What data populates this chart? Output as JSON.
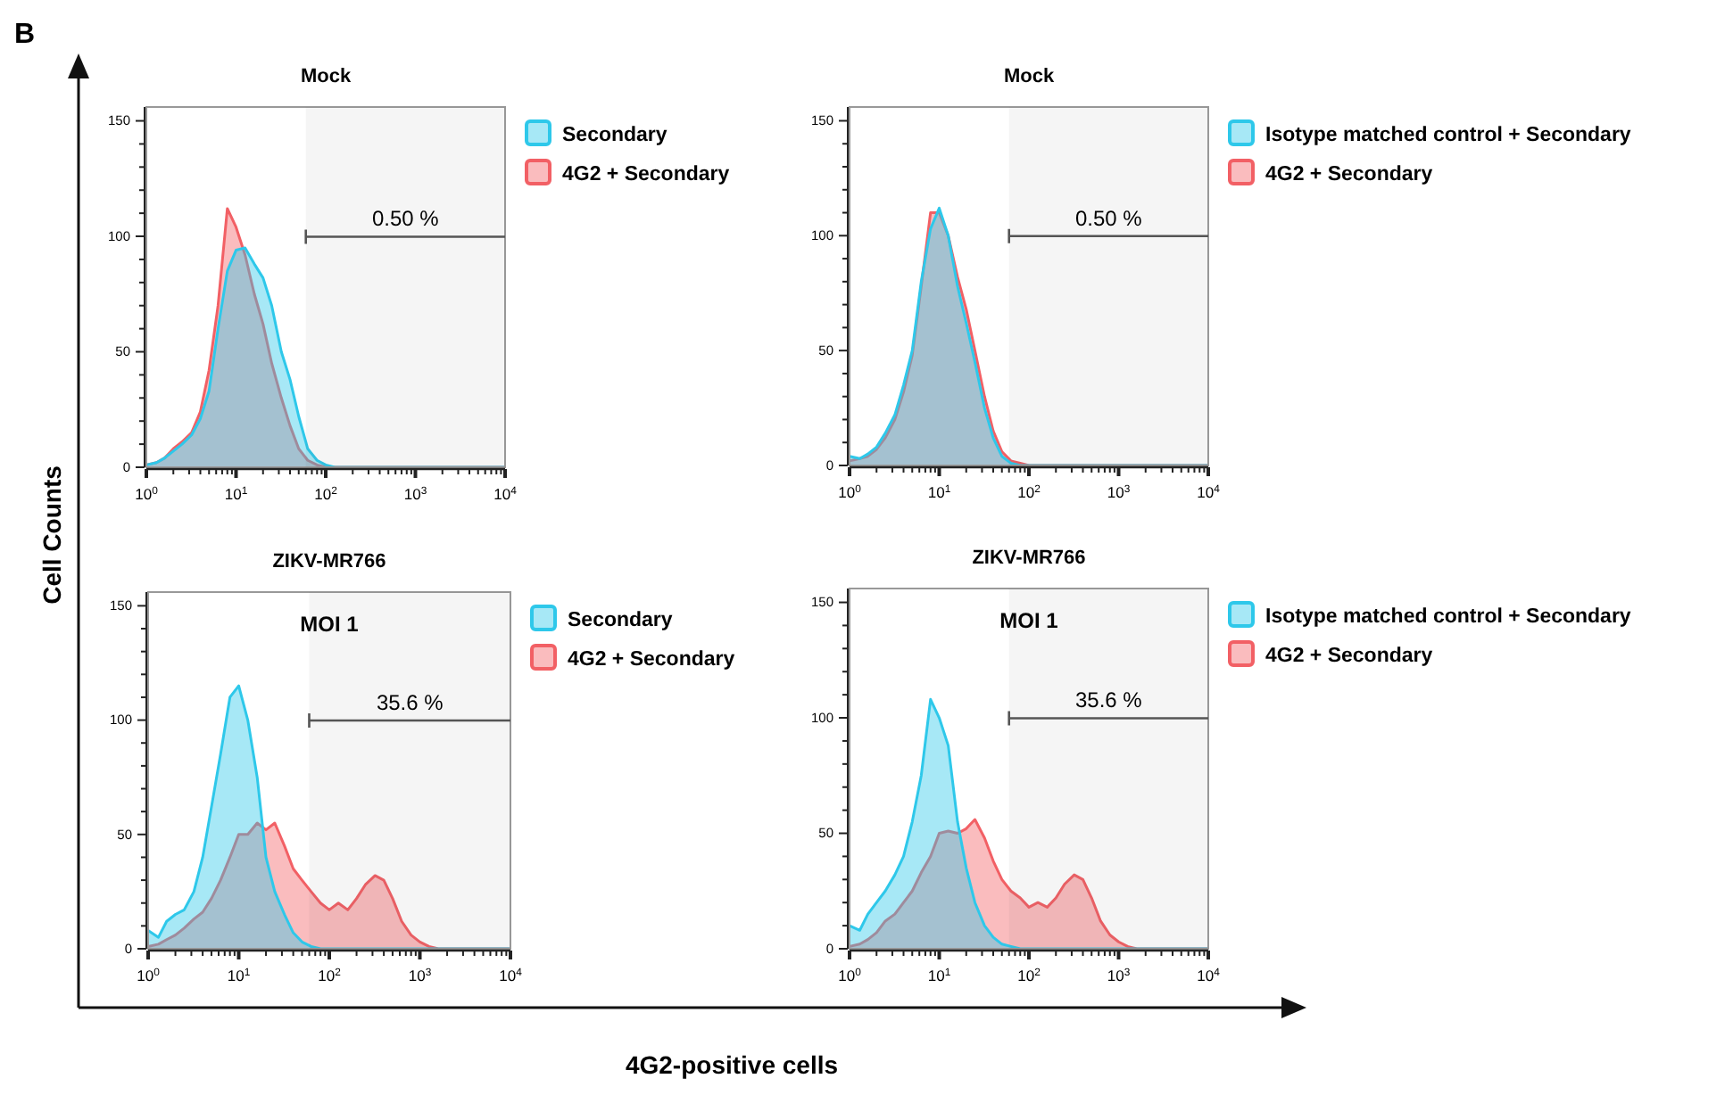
{
  "chart_data": [
    {
      "type": "area",
      "title": "Mock",
      "ylabel": "Cell Counts",
      "log": "x",
      "xlim": [
        1,
        10000
      ],
      "ylim": [
        0,
        156
      ],
      "legend": "right",
      "xticks": [
        {
          "value": 1,
          "label": "10$^{0}$"
        },
        {
          "value": 2,
          "label": null
        },
        {
          "value": 3,
          "label": null
        },
        {
          "value": 4,
          "label": null
        },
        {
          "value": 5,
          "label": null
        },
        {
          "value": 6,
          "label": null
        },
        {
          "value": 7,
          "label": null
        },
        {
          "value": 8,
          "label": null
        },
        {
          "value": 9,
          "label": null
        },
        {
          "value": 10,
          "label": "10$^{1}$"
        },
        {
          "value": 20,
          "label": null
        },
        {
          "value": 30,
          "label": null
        },
        {
          "value": 40,
          "label": null
        },
        {
          "value": 50,
          "label": null
        },
        {
          "value": 60,
          "label": null
        },
        {
          "value": 70,
          "label": null
        },
        {
          "value": 80,
          "label": null
        },
        {
          "value": 90,
          "label": null
        },
        {
          "value": 100,
          "label": "10$^{2}$"
        },
        {
          "value": 200,
          "label": null
        },
        {
          "value": 300,
          "label": null
        },
        {
          "value": 400,
          "label": null
        },
        {
          "value": 500,
          "label": null
        },
        {
          "value": 600,
          "label": null
        },
        {
          "value": 700,
          "label": null
        },
        {
          "value": 800,
          "label": null
        },
        {
          "value": 900,
          "label": null
        },
        {
          "value": 1000,
          "label": "10$^{3}$"
        },
        {
          "value": 2000,
          "label": null
        },
        {
          "value": 3000,
          "label": null
        },
        {
          "value": 4000,
          "label": null
        },
        {
          "value": 5000,
          "label": null
        },
        {
          "value": 6000,
          "label": null
        },
        {
          "value": 7000,
          "label": null
        },
        {
          "value": 8000,
          "label": null
        },
        {
          "value": 9000,
          "label": null
        },
        {
          "value": 10000,
          "label": "10$^{4}$"
        }
      ],
      "yticks": [
        0,
        {
          "value": 10,
          "label": null
        },
        {
          "value": 20,
          "label": null
        },
        {
          "value": 30,
          "label": null
        },
        {
          "value": 40,
          "label": null
        },
        50,
        {
          "value": 60,
          "label": null
        },
        {
          "value": 70,
          "label": null
        },
        {
          "value": 80,
          "label": null
        },
        {
          "value": 90,
          "label": null
        },
        100,
        {
          "value": 110,
          "label": null
        },
        {
          "value": 120,
          "label": null
        },
        {
          "value": 130,
          "label": null
        },
        {
          "value": 140,
          "label": null
        },
        150
      ],
      "annotations": [
        "B"
      ],
      "bands": [
        {
          "axis": "x",
          "from": 60,
          "to": 10000,
          "label": "0.50 %",
          "color": "#555555"
        }
      ],
      "x": [
        1,
        1.3,
        1.6,
        2,
        2.5,
        3.2,
        4,
        5,
        6.3,
        8,
        10,
        12.6,
        16,
        20,
        25,
        32,
        40,
        50,
        63,
        80,
        100,
        126,
        160,
        200,
        250,
        320,
        400,
        500,
        630,
        800,
        1000,
        1260,
        1600,
        2000,
        3200,
        5000,
        10000
      ],
      "series": [
        {
          "name": "Secondary",
          "color": "#2ec8ea",
          "values": [
            1,
            2,
            4,
            7,
            10,
            14,
            21,
            33,
            60,
            85,
            94,
            95,
            88,
            82,
            70,
            50,
            38,
            22,
            8,
            3,
            1,
            0,
            0,
            0,
            0,
            0,
            0,
            0,
            0,
            0,
            0,
            0,
            0,
            0,
            0,
            0,
            0
          ]
        },
        {
          "name": "4G2 + Secondary",
          "color": "#f26065",
          "values": [
            1,
            2,
            4,
            8,
            11,
            15,
            24,
            42,
            70,
            112,
            104,
            92,
            75,
            62,
            45,
            30,
            18,
            8,
            3,
            1,
            0,
            0,
            0,
            0,
            0,
            0,
            0,
            0,
            0,
            0,
            0,
            0,
            0,
            0,
            0,
            0,
            0
          ]
        }
      ]
    },
    {
      "type": "area",
      "title": "Mock",
      "log": "x",
      "xlim": [
        1,
        10000
      ],
      "ylim": [
        0,
        156
      ],
      "legend": "right",
      "xticks": [
        {
          "value": 1,
          "label": "10$^{0}$"
        },
        {
          "value": 2,
          "label": null
        },
        {
          "value": 3,
          "label": null
        },
        {
          "value": 4,
          "label": null
        },
        {
          "value": 5,
          "label": null
        },
        {
          "value": 6,
          "label": null
        },
        {
          "value": 7,
          "label": null
        },
        {
          "value": 8,
          "label": null
        },
        {
          "value": 9,
          "label": null
        },
        {
          "value": 10,
          "label": "10$^{1}$"
        },
        {
          "value": 20,
          "label": null
        },
        {
          "value": 30,
          "label": null
        },
        {
          "value": 40,
          "label": null
        },
        {
          "value": 50,
          "label": null
        },
        {
          "value": 60,
          "label": null
        },
        {
          "value": 70,
          "label": null
        },
        {
          "value": 80,
          "label": null
        },
        {
          "value": 90,
          "label": null
        },
        {
          "value": 100,
          "label": "10$^{2}$"
        },
        {
          "value": 200,
          "label": null
        },
        {
          "value": 300,
          "label": null
        },
        {
          "value": 400,
          "label": null
        },
        {
          "value": 500,
          "label": null
        },
        {
          "value": 600,
          "label": null
        },
        {
          "value": 700,
          "label": null
        },
        {
          "value": 800,
          "label": null
        },
        {
          "value": 900,
          "label": null
        },
        {
          "value": 1000,
          "label": "10$^{3}$"
        },
        {
          "value": 2000,
          "label": null
        },
        {
          "value": 3000,
          "label": null
        },
        {
          "value": 4000,
          "label": null
        },
        {
          "value": 5000,
          "label": null
        },
        {
          "value": 6000,
          "label": null
        },
        {
          "value": 7000,
          "label": null
        },
        {
          "value": 8000,
          "label": null
        },
        {
          "value": 9000,
          "label": null
        },
        {
          "value": 10000,
          "label": "10$^{4}$"
        }
      ],
      "yticks": [
        0,
        {
          "value": 10,
          "label": null
        },
        {
          "value": 20,
          "label": null
        },
        {
          "value": 30,
          "label": null
        },
        {
          "value": 40,
          "label": null
        },
        50,
        {
          "value": 60,
          "label": null
        },
        {
          "value": 70,
          "label": null
        },
        {
          "value": 80,
          "label": null
        },
        {
          "value": 90,
          "label": null
        },
        100,
        {
          "value": 110,
          "label": null
        },
        {
          "value": 120,
          "label": null
        },
        {
          "value": 130,
          "label": null
        },
        {
          "value": 140,
          "label": null
        },
        150
      ],
      "bands": [
        {
          "axis": "x",
          "from": 60,
          "to": 10000,
          "label": "0.50 %",
          "color": "#555555"
        }
      ],
      "x": [
        1,
        1.3,
        1.6,
        2,
        2.5,
        3.2,
        4,
        5,
        6.3,
        8,
        10,
        12.6,
        16,
        20,
        25,
        32,
        40,
        50,
        63,
        80,
        100,
        126,
        160,
        200,
        250,
        320,
        400,
        500,
        630,
        800,
        1000,
        1260,
        1600,
        2000,
        3200,
        5000,
        10000
      ],
      "series": [
        {
          "name": "Isotype matched control + Secondary",
          "color": "#2ec8ea",
          "values": [
            4,
            3,
            5,
            8,
            14,
            22,
            35,
            50,
            80,
            103,
            112,
            100,
            78,
            62,
            45,
            25,
            12,
            4,
            1,
            0,
            0,
            0,
            0,
            0,
            0,
            0,
            0,
            0,
            0,
            0,
            0,
            0,
            0,
            0,
            0,
            0,
            0
          ]
        },
        {
          "name": "4G2 + Secondary",
          "color": "#f26065",
          "values": [
            2,
            3,
            4,
            7,
            12,
            20,
            32,
            48,
            78,
            110,
            110,
            100,
            82,
            68,
            50,
            30,
            15,
            6,
            2,
            1,
            0,
            0,
            0,
            0,
            0,
            0,
            0,
            0,
            0,
            0,
            0,
            0,
            0,
            0,
            0,
            0,
            0
          ]
        }
      ]
    },
    {
      "type": "area",
      "title": "ZIKV-MR766",
      "subtitle": "MOI 1",
      "xlabel": "4G2-positive cells",
      "log": "x",
      "xlim": [
        1,
        10000
      ],
      "ylim": [
        0,
        156
      ],
      "legend": "right",
      "xticks": [
        {
          "value": 1,
          "label": "10$^{0}$"
        },
        {
          "value": 2,
          "label": null
        },
        {
          "value": 3,
          "label": null
        },
        {
          "value": 4,
          "label": null
        },
        {
          "value": 5,
          "label": null
        },
        {
          "value": 6,
          "label": null
        },
        {
          "value": 7,
          "label": null
        },
        {
          "value": 8,
          "label": null
        },
        {
          "value": 9,
          "label": null
        },
        {
          "value": 10,
          "label": "10$^{1}$"
        },
        {
          "value": 20,
          "label": null
        },
        {
          "value": 30,
          "label": null
        },
        {
          "value": 40,
          "label": null
        },
        {
          "value": 50,
          "label": null
        },
        {
          "value": 60,
          "label": null
        },
        {
          "value": 70,
          "label": null
        },
        {
          "value": 80,
          "label": null
        },
        {
          "value": 90,
          "label": null
        },
        {
          "value": 100,
          "label": "10$^{2}$"
        },
        {
          "value": 200,
          "label": null
        },
        {
          "value": 300,
          "label": null
        },
        {
          "value": 400,
          "label": null
        },
        {
          "value": 500,
          "label": null
        },
        {
          "value": 600,
          "label": null
        },
        {
          "value": 700,
          "label": null
        },
        {
          "value": 800,
          "label": null
        },
        {
          "value": 900,
          "label": null
        },
        {
          "value": 1000,
          "label": "10$^{3}$"
        },
        {
          "value": 2000,
          "label": null
        },
        {
          "value": 3000,
          "label": null
        },
        {
          "value": 4000,
          "label": null
        },
        {
          "value": 5000,
          "label": null
        },
        {
          "value": 6000,
          "label": null
        },
        {
          "value": 7000,
          "label": null
        },
        {
          "value": 8000,
          "label": null
        },
        {
          "value": 9000,
          "label": null
        },
        {
          "value": 10000,
          "label": "10$^{4}$"
        }
      ],
      "yticks": [
        0,
        {
          "value": 10,
          "label": null
        },
        {
          "value": 20,
          "label": null
        },
        {
          "value": 30,
          "label": null
        },
        {
          "value": 40,
          "label": null
        },
        50,
        {
          "value": 60,
          "label": null
        },
        {
          "value": 70,
          "label": null
        },
        {
          "value": 80,
          "label": null
        },
        {
          "value": 90,
          "label": null
        },
        100,
        {
          "value": 110,
          "label": null
        },
        {
          "value": 120,
          "label": null
        },
        {
          "value": 130,
          "label": null
        },
        {
          "value": 140,
          "label": null
        },
        150
      ],
      "bands": [
        {
          "axis": "x",
          "from": 60,
          "to": 10000,
          "label": "35.6 %",
          "color": "#555555"
        }
      ],
      "x": [
        1,
        1.3,
        1.6,
        2,
        2.5,
        3.2,
        4,
        5,
        6.3,
        8,
        10,
        12.6,
        16,
        20,
        25,
        32,
        40,
        50,
        63,
        80,
        100,
        126,
        160,
        200,
        250,
        320,
        400,
        500,
        630,
        800,
        1000,
        1260,
        1600,
        2000,
        3200,
        5000,
        10000
      ],
      "series": [
        {
          "name": "Secondary",
          "color": "#2ec8ea",
          "values": [
            8,
            5,
            12,
            15,
            17,
            25,
            40,
            62,
            85,
            110,
            115,
            100,
            75,
            40,
            25,
            15,
            7,
            3,
            1,
            0,
            0,
            0,
            0,
            0,
            0,
            0,
            0,
            0,
            0,
            0,
            0,
            0,
            0,
            0,
            0,
            0,
            0
          ]
        },
        {
          "name": "4G2 + Secondary",
          "color": "#f26065",
          "values": [
            1,
            2,
            4,
            6,
            9,
            13,
            16,
            22,
            30,
            40,
            50,
            50,
            55,
            52,
            55,
            45,
            35,
            30,
            25,
            20,
            17,
            20,
            17,
            22,
            28,
            32,
            30,
            22,
            12,
            6,
            3,
            1,
            0,
            0,
            0,
            0,
            0
          ]
        }
      ]
    },
    {
      "type": "area",
      "title": "ZIKV-MR766",
      "subtitle": "MOI 1",
      "log": "x",
      "xlim": [
        1,
        10000
      ],
      "ylim": [
        0,
        156
      ],
      "legend": "right",
      "xticks": [
        {
          "value": 1,
          "label": "10$^{0}$"
        },
        {
          "value": 2,
          "label": null
        },
        {
          "value": 3,
          "label": null
        },
        {
          "value": 4,
          "label": null
        },
        {
          "value": 5,
          "label": null
        },
        {
          "value": 6,
          "label": null
        },
        {
          "value": 7,
          "label": null
        },
        {
          "value": 8,
          "label": null
        },
        {
          "value": 9,
          "label": null
        },
        {
          "value": 10,
          "label": "10$^{1}$"
        },
        {
          "value": 20,
          "label": null
        },
        {
          "value": 30,
          "label": null
        },
        {
          "value": 40,
          "label": null
        },
        {
          "value": 50,
          "label": null
        },
        {
          "value": 60,
          "label": null
        },
        {
          "value": 70,
          "label": null
        },
        {
          "value": 80,
          "label": null
        },
        {
          "value": 90,
          "label": null
        },
        {
          "value": 100,
          "label": "10$^{2}$"
        },
        {
          "value": 200,
          "label": null
        },
        {
          "value": 300,
          "label": null
        },
        {
          "value": 400,
          "label": null
        },
        {
          "value": 500,
          "label": null
        },
        {
          "value": 600,
          "label": null
        },
        {
          "value": 700,
          "label": null
        },
        {
          "value": 800,
          "label": null
        },
        {
          "value": 900,
          "label": null
        },
        {
          "value": 1000,
          "label": "10$^{3}$"
        },
        {
          "value": 2000,
          "label": null
        },
        {
          "value": 3000,
          "label": null
        },
        {
          "value": 4000,
          "label": null
        },
        {
          "value": 5000,
          "label": null
        },
        {
          "value": 6000,
          "label": null
        },
        {
          "value": 7000,
          "label": null
        },
        {
          "value": 8000,
          "label": null
        },
        {
          "value": 9000,
          "label": null
        },
        {
          "value": 10000,
          "label": "10$^{4}$"
        }
      ],
      "yticks": [
        0,
        {
          "value": 10,
          "label": null
        },
        {
          "value": 20,
          "label": null
        },
        {
          "value": 30,
          "label": null
        },
        {
          "value": 40,
          "label": null
        },
        50,
        {
          "value": 60,
          "label": null
        },
        {
          "value": 70,
          "label": null
        },
        {
          "value": 80,
          "label": null
        },
        {
          "value": 90,
          "label": null
        },
        100,
        {
          "value": 110,
          "label": null
        },
        {
          "value": 120,
          "label": null
        },
        {
          "value": 130,
          "label": null
        },
        {
          "value": 140,
          "label": null
        },
        150
      ],
      "bands": [
        {
          "axis": "x",
          "from": 60,
          "to": 10000,
          "label": "35.6 %",
          "color": "#555555"
        }
      ],
      "x": [
        1,
        1.3,
        1.6,
        2,
        2.5,
        3.2,
        4,
        5,
        6.3,
        8,
        10,
        12.6,
        16,
        20,
        25,
        32,
        40,
        50,
        63,
        80,
        100,
        126,
        160,
        200,
        250,
        320,
        400,
        500,
        630,
        800,
        1000,
        1260,
        1600,
        2000,
        3200,
        5000,
        10000
      ],
      "series": [
        {
          "name": "Isotype matched control + Secondary",
          "color": "#2ec8ea",
          "values": [
            10,
            8,
            15,
            20,
            25,
            32,
            40,
            55,
            75,
            108,
            100,
            88,
            55,
            35,
            20,
            10,
            5,
            2,
            1,
            0,
            0,
            0,
            0,
            0,
            0,
            0,
            0,
            0,
            0,
            0,
            0,
            0,
            0,
            0,
            0,
            0,
            0
          ]
        },
        {
          "name": "4G2 + Secondary",
          "color": "#f26065",
          "values": [
            1,
            2,
            4,
            7,
            12,
            15,
            20,
            25,
            33,
            40,
            50,
            51,
            50,
            52,
            56,
            48,
            38,
            30,
            25,
            22,
            18,
            20,
            18,
            22,
            28,
            32,
            30,
            22,
            12,
            6,
            3,
            1,
            0,
            0,
            0,
            0,
            0
          ]
        }
      ]
    }
  ]
}
